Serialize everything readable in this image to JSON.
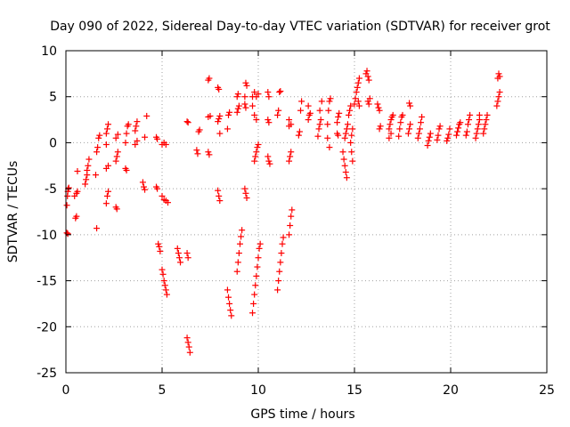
{
  "chart_data": {
    "type": "scatter",
    "title": "Day 090 of 2022, Sidereal Day-to-day VTEC variation (SDTVAR) for receiver grot",
    "xlabel": "GPS time / hours",
    "ylabel": "SDTVAR / TECUs",
    "xlim": [
      0,
      25
    ],
    "ylim": [
      -25,
      10
    ],
    "xticks": [
      0,
      5,
      10,
      15,
      20,
      25
    ],
    "yticks": [
      -25,
      -20,
      -15,
      -10,
      -5,
      0,
      5,
      10
    ],
    "xtick_labels": [
      "0",
      "5",
      "10",
      "15",
      "20",
      "25"
    ],
    "ytick_labels": [
      "-25",
      "-20",
      "-15",
      "-10",
      "-5",
      "0",
      "5",
      "10"
    ],
    "grid": true,
    "marker": "+",
    "color": "#ff0000",
    "series": [
      {
        "name": "SDTVAR",
        "points": [
          [
            0.05,
            -6.8
          ],
          [
            0.08,
            -5.8
          ],
          [
            0.1,
            -5.3
          ],
          [
            0.12,
            -5.0
          ],
          [
            0.15,
            -4.9
          ],
          [
            0.05,
            -9.8
          ],
          [
            0.1,
            -9.9
          ],
          [
            0.5,
            -8.2
          ],
          [
            0.55,
            -8.0
          ],
          [
            0.45,
            -5.8
          ],
          [
            0.55,
            -5.5
          ],
          [
            0.6,
            -5.3
          ],
          [
            0.6,
            -3.1
          ],
          [
            1.0,
            -4.5
          ],
          [
            1.05,
            -4.0
          ],
          [
            1.1,
            -3.5
          ],
          [
            1.1,
            -3.0
          ],
          [
            1.15,
            -2.5
          ],
          [
            1.2,
            -1.8
          ],
          [
            1.6,
            -9.3
          ],
          [
            1.55,
            -3.5
          ],
          [
            1.6,
            -1.0
          ],
          [
            1.65,
            -0.5
          ],
          [
            1.7,
            0.5
          ],
          [
            1.75,
            0.8
          ],
          [
            2.1,
            -6.6
          ],
          [
            2.15,
            -5.8
          ],
          [
            2.2,
            -5.3
          ],
          [
            2.1,
            -2.8
          ],
          [
            2.2,
            -2.5
          ],
          [
            2.1,
            1.0
          ],
          [
            2.15,
            1.5
          ],
          [
            2.2,
            2.0
          ],
          [
            2.1,
            -0.2
          ],
          [
            2.6,
            -7.0
          ],
          [
            2.65,
            -7.2
          ],
          [
            2.6,
            -2.0
          ],
          [
            2.65,
            -1.5
          ],
          [
            2.7,
            -1.0
          ],
          [
            2.6,
            0.5
          ],
          [
            2.7,
            0.9
          ],
          [
            3.1,
            -2.8
          ],
          [
            3.15,
            -3.0
          ],
          [
            3.1,
            0.0
          ],
          [
            3.15,
            1.0
          ],
          [
            3.2,
            1.8
          ],
          [
            3.25,
            2.0
          ],
          [
            3.6,
            1.3
          ],
          [
            3.65,
            1.8
          ],
          [
            3.7,
            2.3
          ],
          [
            3.6,
            -0.2
          ],
          [
            3.7,
            0.2
          ],
          [
            4.0,
            -4.3
          ],
          [
            4.05,
            -4.8
          ],
          [
            4.1,
            -5.1
          ],
          [
            4.1,
            0.6
          ],
          [
            4.2,
            2.9
          ],
          [
            4.7,
            -4.8
          ],
          [
            4.75,
            -5.0
          ],
          [
            4.7,
            0.6
          ],
          [
            4.75,
            0.4
          ],
          [
            4.8,
            -11.0
          ],
          [
            4.85,
            -11.3
          ],
          [
            4.9,
            -11.8
          ],
          [
            5.0,
            -13.8
          ],
          [
            5.05,
            -14.3
          ],
          [
            5.1,
            -15.0
          ],
          [
            5.15,
            -15.5
          ],
          [
            5.2,
            -16.0
          ],
          [
            5.25,
            -16.5
          ],
          [
            5.0,
            -5.8
          ],
          [
            5.1,
            -6.2
          ],
          [
            5.2,
            -6.3
          ],
          [
            5.3,
            -6.5
          ],
          [
            5.0,
            -0.2
          ],
          [
            5.1,
            0.0
          ],
          [
            5.2,
            -0.2
          ],
          [
            5.8,
            -11.5
          ],
          [
            5.85,
            -12.0
          ],
          [
            5.9,
            -12.5
          ],
          [
            5.95,
            -13.0
          ],
          [
            6.3,
            -12.0
          ],
          [
            6.35,
            -12.5
          ],
          [
            6.3,
            2.3
          ],
          [
            6.35,
            2.2
          ],
          [
            6.3,
            -21.2
          ],
          [
            6.35,
            -21.7
          ],
          [
            6.4,
            -22.2
          ],
          [
            6.45,
            -22.8
          ],
          [
            6.8,
            -0.8
          ],
          [
            6.85,
            -1.2
          ],
          [
            6.9,
            1.2
          ],
          [
            6.95,
            1.4
          ],
          [
            7.4,
            -1.0
          ],
          [
            7.45,
            -1.3
          ],
          [
            7.4,
            2.8
          ],
          [
            7.5,
            2.9
          ],
          [
            7.4,
            6.8
          ],
          [
            7.45,
            7.0
          ],
          [
            7.9,
            -5.2
          ],
          [
            7.95,
            -5.8
          ],
          [
            8.0,
            -6.3
          ],
          [
            7.9,
            2.3
          ],
          [
            7.95,
            2.6
          ],
          [
            8.0,
            2.9
          ],
          [
            7.9,
            6.0
          ],
          [
            7.95,
            5.8
          ],
          [
            8.0,
            1.0
          ],
          [
            8.4,
            -16.0
          ],
          [
            8.45,
            -16.8
          ],
          [
            8.5,
            -17.5
          ],
          [
            8.55,
            -18.2
          ],
          [
            8.6,
            -18.8
          ],
          [
            8.4,
            1.5
          ],
          [
            8.45,
            3.0
          ],
          [
            8.5,
            3.3
          ],
          [
            8.9,
            -14.0
          ],
          [
            8.95,
            -13.0
          ],
          [
            9.0,
            -12.0
          ],
          [
            9.05,
            -11.0
          ],
          [
            9.1,
            -10.2
          ],
          [
            9.15,
            -9.5
          ],
          [
            8.9,
            3.3
          ],
          [
            8.95,
            3.7
          ],
          [
            9.0,
            4.0
          ],
          [
            8.9,
            5.0
          ],
          [
            8.95,
            5.3
          ],
          [
            9.3,
            -5.0
          ],
          [
            9.35,
            -5.5
          ],
          [
            9.4,
            -6.0
          ],
          [
            9.3,
            5.0
          ],
          [
            9.35,
            6.5
          ],
          [
            9.4,
            6.2
          ],
          [
            9.3,
            4.2
          ],
          [
            9.35,
            3.8
          ],
          [
            9.7,
            -18.5
          ],
          [
            9.75,
            -17.5
          ],
          [
            9.8,
            -16.5
          ],
          [
            9.85,
            -15.5
          ],
          [
            9.9,
            -14.5
          ],
          [
            9.95,
            -13.5
          ],
          [
            10.0,
            -12.5
          ],
          [
            10.05,
            -11.5
          ],
          [
            10.1,
            -11.0
          ],
          [
            9.8,
            -2.0
          ],
          [
            9.85,
            -1.5
          ],
          [
            9.9,
            -1.0
          ],
          [
            9.95,
            -0.5
          ],
          [
            10.0,
            -0.2
          ],
          [
            9.7,
            5.0
          ],
          [
            9.8,
            5.5
          ],
          [
            9.9,
            5.0
          ],
          [
            10.0,
            5.3
          ],
          [
            9.7,
            4.0
          ],
          [
            9.8,
            3.0
          ],
          [
            9.9,
            2.5
          ],
          [
            10.5,
            -1.5
          ],
          [
            10.55,
            -2.0
          ],
          [
            10.6,
            -2.3
          ],
          [
            10.5,
            2.5
          ],
          [
            10.55,
            2.2
          ],
          [
            10.5,
            5.5
          ],
          [
            10.55,
            5.0
          ],
          [
            11.0,
            -16.0
          ],
          [
            11.05,
            -15.0
          ],
          [
            11.1,
            -14.0
          ],
          [
            11.15,
            -13.0
          ],
          [
            11.2,
            -12.0
          ],
          [
            11.25,
            -11.0
          ],
          [
            11.3,
            -10.3
          ],
          [
            11.0,
            3.0
          ],
          [
            11.05,
            3.5
          ],
          [
            11.1,
            5.5
          ],
          [
            11.15,
            5.6
          ],
          [
            11.6,
            -10.0
          ],
          [
            11.65,
            -9.0
          ],
          [
            11.7,
            -8.0
          ],
          [
            11.75,
            -7.3
          ],
          [
            11.6,
            -2.0
          ],
          [
            11.65,
            -1.5
          ],
          [
            11.7,
            -1.0
          ],
          [
            11.6,
            1.8
          ],
          [
            11.7,
            2.0
          ],
          [
            11.6,
            2.5
          ],
          [
            12.1,
            0.8
          ],
          [
            12.15,
            1.2
          ],
          [
            12.2,
            3.5
          ],
          [
            12.25,
            4.5
          ],
          [
            12.6,
            2.5
          ],
          [
            12.65,
            3.0
          ],
          [
            12.7,
            3.2
          ],
          [
            12.6,
            4.0
          ],
          [
            13.1,
            0.7
          ],
          [
            13.15,
            1.5
          ],
          [
            13.2,
            2.0
          ],
          [
            13.25,
            2.5
          ],
          [
            13.2,
            3.5
          ],
          [
            13.3,
            4.5
          ],
          [
            13.6,
            2.0
          ],
          [
            13.65,
            3.5
          ],
          [
            13.7,
            4.5
          ],
          [
            13.75,
            4.8
          ],
          [
            13.7,
            -0.5
          ],
          [
            13.6,
            0.5
          ],
          [
            14.1,
            2.2
          ],
          [
            14.15,
            2.8
          ],
          [
            14.2,
            3.2
          ],
          [
            14.1,
            1.0
          ],
          [
            14.15,
            0.8
          ],
          [
            14.4,
            -1.0
          ],
          [
            14.45,
            -1.8
          ],
          [
            14.5,
            -2.5
          ],
          [
            14.55,
            -3.2
          ],
          [
            14.6,
            -3.8
          ],
          [
            14.5,
            0.5
          ],
          [
            14.55,
            1.0
          ],
          [
            14.6,
            1.5
          ],
          [
            14.65,
            2.0
          ],
          [
            14.7,
            3.0
          ],
          [
            14.75,
            3.5
          ],
          [
            14.8,
            4.0
          ],
          [
            14.8,
            0.0
          ],
          [
            14.85,
            -1.0
          ],
          [
            14.9,
            -2.0
          ],
          [
            14.85,
            0.8
          ],
          [
            14.9,
            1.5
          ],
          [
            15.0,
            4.2
          ],
          [
            15.05,
            4.8
          ],
          [
            15.1,
            5.5
          ],
          [
            15.15,
            6.0
          ],
          [
            15.2,
            6.5
          ],
          [
            15.25,
            7.0
          ],
          [
            15.2,
            4.5
          ],
          [
            15.25,
            4.0
          ],
          [
            15.6,
            7.5
          ],
          [
            15.65,
            7.8
          ],
          [
            15.7,
            7.2
          ],
          [
            15.75,
            6.8
          ],
          [
            15.7,
            4.5
          ],
          [
            15.75,
            4.2
          ],
          [
            15.8,
            4.8
          ],
          [
            16.2,
            4.2
          ],
          [
            16.25,
            3.8
          ],
          [
            16.3,
            3.5
          ],
          [
            16.3,
            1.5
          ],
          [
            16.35,
            1.8
          ],
          [
            16.8,
            1.5
          ],
          [
            16.85,
            2.0
          ],
          [
            16.9,
            2.5
          ],
          [
            16.95,
            2.8
          ],
          [
            17.0,
            3.0
          ],
          [
            16.8,
            0.5
          ],
          [
            16.9,
            1.0
          ],
          [
            17.3,
            0.7
          ],
          [
            17.35,
            1.5
          ],
          [
            17.4,
            2.2
          ],
          [
            17.45,
            2.8
          ],
          [
            17.5,
            3.0
          ],
          [
            17.8,
            1.0
          ],
          [
            17.85,
            1.5
          ],
          [
            17.9,
            2.0
          ],
          [
            17.85,
            4.3
          ],
          [
            17.9,
            4.0
          ],
          [
            18.3,
            0.5
          ],
          [
            18.35,
            1.0
          ],
          [
            18.4,
            1.5
          ],
          [
            18.45,
            2.2
          ],
          [
            18.5,
            2.8
          ],
          [
            18.8,
            -0.3
          ],
          [
            18.85,
            0.2
          ],
          [
            18.9,
            0.6
          ],
          [
            18.95,
            1.0
          ],
          [
            19.3,
            0.3
          ],
          [
            19.35,
            0.8
          ],
          [
            19.4,
            1.5
          ],
          [
            19.45,
            1.8
          ],
          [
            19.8,
            0.2
          ],
          [
            19.85,
            0.5
          ],
          [
            19.9,
            0.9
          ],
          [
            19.95,
            1.5
          ],
          [
            20.3,
            0.8
          ],
          [
            20.35,
            1.2
          ],
          [
            20.4,
            1.6
          ],
          [
            20.45,
            2.0
          ],
          [
            20.5,
            2.2
          ],
          [
            20.8,
            0.8
          ],
          [
            20.85,
            1.2
          ],
          [
            20.9,
            2.0
          ],
          [
            20.95,
            2.5
          ],
          [
            21.0,
            3.0
          ],
          [
            21.3,
            0.5
          ],
          [
            21.35,
            1.0
          ],
          [
            21.4,
            1.5
          ],
          [
            21.45,
            2.0
          ],
          [
            21.5,
            2.5
          ],
          [
            21.5,
            3.0
          ],
          [
            21.7,
            1.0
          ],
          [
            21.75,
            1.5
          ],
          [
            21.8,
            2.0
          ],
          [
            21.85,
            2.5
          ],
          [
            21.9,
            3.0
          ],
          [
            22.4,
            4.0
          ],
          [
            22.45,
            4.5
          ],
          [
            22.5,
            5.0
          ],
          [
            22.55,
            5.5
          ],
          [
            22.45,
            7.0
          ],
          [
            22.5,
            7.5
          ],
          [
            22.55,
            7.2
          ]
        ]
      }
    ]
  }
}
